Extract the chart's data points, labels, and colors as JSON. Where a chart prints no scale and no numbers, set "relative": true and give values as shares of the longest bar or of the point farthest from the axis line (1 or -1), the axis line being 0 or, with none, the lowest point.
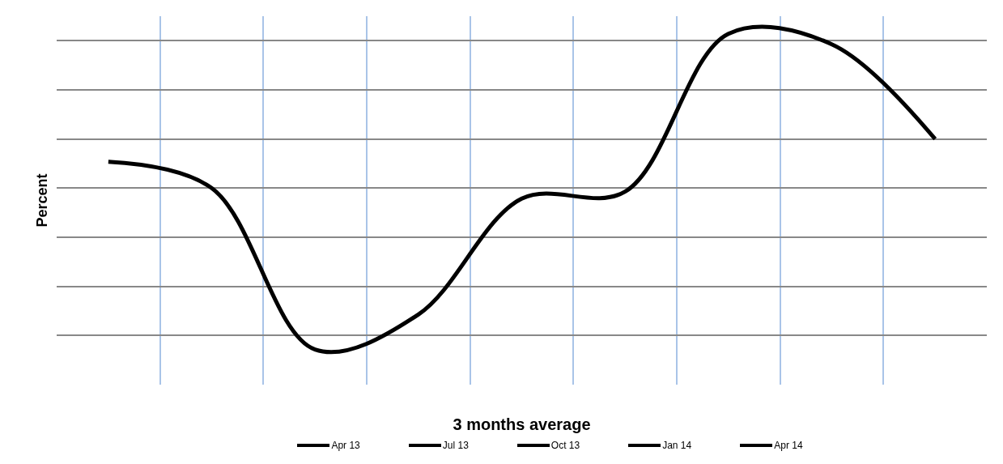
{
  "chart_data": {
    "type": "line",
    "relative": true,
    "xlabel": "3 months average",
    "ylabel": "Percent",
    "categories": [
      null,
      null,
      null,
      null,
      null,
      null,
      null,
      null,
      null
    ],
    "series": [
      {
        "color": "#000000",
        "values": [
          0.635,
          0.56,
          0.1,
          0.2,
          0.53,
          0.55,
          1,
          0.97,
          0.7
        ]
      }
    ],
    "annotations": [
      "Apr 13",
      "Jul 13",
      "Oct 13",
      "Jan 14",
      "Apr 14"
    ],
    "grid": true,
    "marker": "none",
    "line_style": "solid"
  }
}
